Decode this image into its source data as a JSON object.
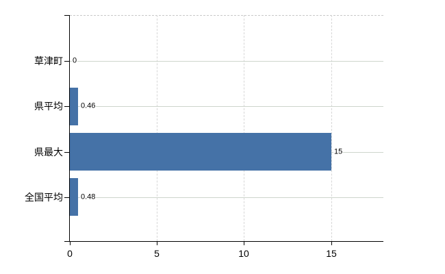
{
  "chart_data": {
    "type": "bar",
    "orientation": "horizontal",
    "title": "",
    "xlabel": "",
    "ylabel": "",
    "categories": [
      "草津町",
      "県平均",
      "県最大",
      "全国平均"
    ],
    "values": [
      0,
      0.46,
      15,
      0.48
    ],
    "value_labels": [
      "0",
      "0.46",
      "15",
      "0.48"
    ],
    "xlim": [
      0,
      18
    ],
    "xticks": [
      0,
      5,
      10,
      15
    ],
    "xtick_labels": [
      "0",
      "5",
      "10",
      "15"
    ],
    "legend": "none",
    "grid": {
      "vertical_gridlines": "dashed",
      "category_lines": "solid",
      "top_border": "dashed"
    },
    "colors": {
      "bar": "#4572a7",
      "axis": "#000000",
      "text": "#000000",
      "vertical_gridline": "#d6d6d6",
      "category_line": "#cdd5cc",
      "top_border": "#c8c8c8",
      "background": "#ffffff"
    }
  }
}
